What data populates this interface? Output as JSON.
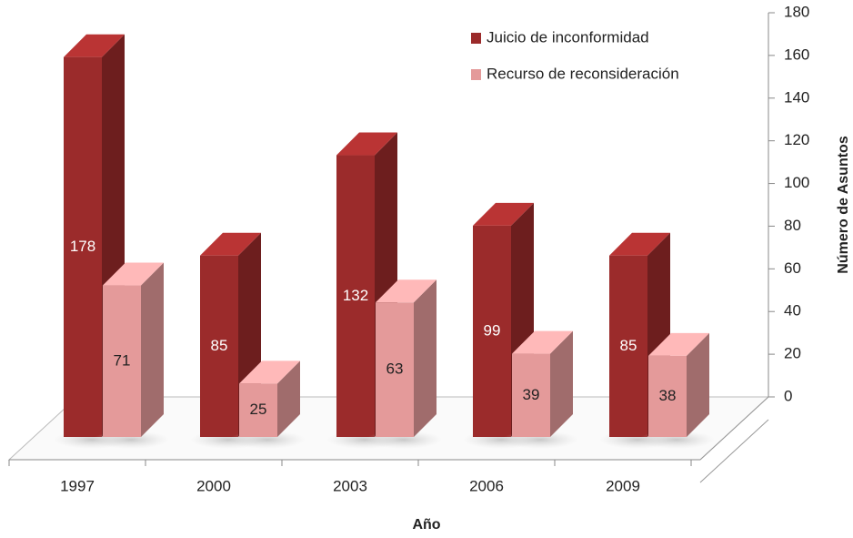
{
  "chart_data": {
    "type": "bar3d",
    "categories": [
      "1997",
      "2000",
      "2003",
      "2006",
      "2009"
    ],
    "series": [
      {
        "name": "Juicio de inconformidad",
        "color": "#9b2b2b",
        "values": [
          178,
          85,
          132,
          99,
          85
        ]
      },
      {
        "name": "Recurso de reconsideración",
        "color": "#e49a9a",
        "values": [
          71,
          25,
          63,
          39,
          38
        ]
      }
    ],
    "ylim": [
      0,
      180
    ],
    "yticks": [
      0,
      20,
      40,
      60,
      80,
      100,
      120,
      140,
      160,
      180
    ],
    "xlabel": "Año",
    "ylabel": "Número de Asuntos",
    "legend": "top-right"
  }
}
